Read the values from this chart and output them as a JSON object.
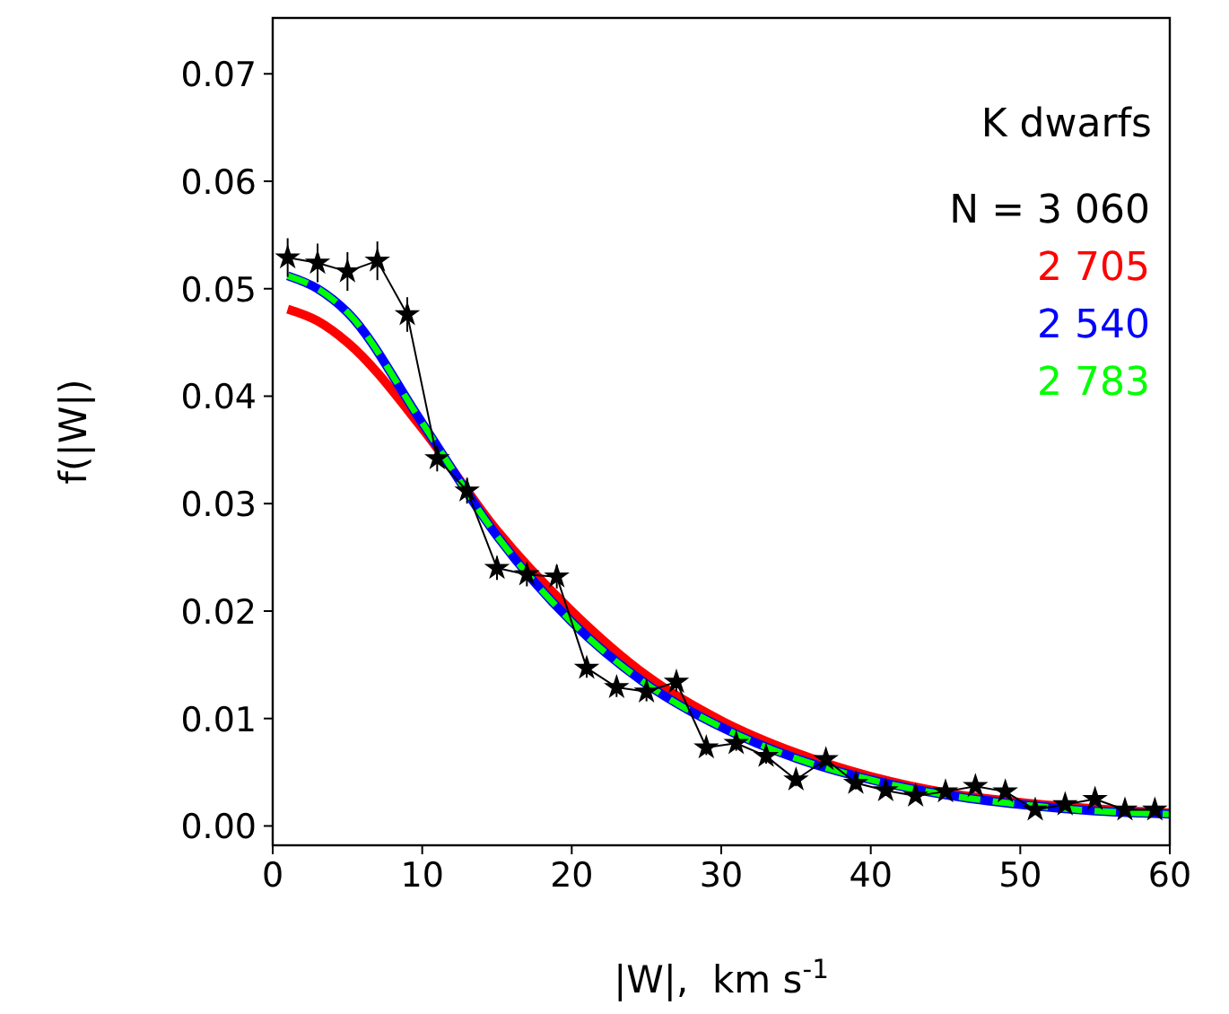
{
  "chart_data": {
    "type": "line",
    "xlabel": "|W|,  km s$^{-1}$",
    "ylabel": "f(|W|)",
    "legend_title": "K dwarfs",
    "legend": "top right",
    "xlim": [
      0,
      60
    ],
    "ylim": [
      -0.0018,
      0.0752
    ],
    "xticks": [
      0,
      10,
      20,
      30,
      40,
      50,
      60
    ],
    "yticks": [
      {
        "value": 0,
        "label": "0.00"
      },
      {
        "value": 0.01,
        "label": "0.01"
      },
      {
        "value": 0.02,
        "label": "0.02"
      },
      {
        "value": 0.03,
        "label": "0.03"
      },
      {
        "value": 0.04,
        "label": "0.04"
      },
      {
        "value": 0.05,
        "label": "0.05"
      },
      {
        "value": 0.06,
        "label": "0.06"
      },
      {
        "value": 0.07,
        "label": "0.07"
      }
    ],
    "grid": false,
    "series": [
      {
        "name": "N = 3 060",
        "color": "#000000",
        "marker": "star",
        "line_style": "solid",
        "x": [
          1,
          3,
          5,
          7,
          9,
          11,
          13,
          15,
          17,
          19,
          21,
          23,
          25,
          27,
          29,
          31,
          33,
          35,
          37,
          39,
          41,
          43,
          45,
          47,
          49,
          51,
          53,
          55,
          57,
          59
        ],
        "values": [
          0.0529,
          0.0524,
          0.0516,
          0.0526,
          0.0476,
          0.0342,
          0.0312,
          0.024,
          0.0234,
          0.0232,
          0.0147,
          0.0129,
          0.0125,
          0.0134,
          0.0073,
          0.0077,
          0.0065,
          0.0043,
          0.0062,
          0.004,
          0.0033,
          0.0028,
          0.0032,
          0.0037,
          0.0032,
          0.0015,
          0.002,
          0.0025,
          0.0015,
          0.0015
        ],
        "errors": [
          0.0018,
          0.0018,
          0.0018,
          0.0018,
          0.0016,
          0.0012,
          0.0012,
          0.0011,
          0.0011,
          0.0011,
          0.0009,
          0.0009,
          0.0009,
          0.0009,
          0.0007,
          0.0007,
          0.0007,
          0.0006,
          0.0006,
          0.0006,
          0.0005,
          0.0005,
          0.0005,
          0.0005,
          0.0005,
          0.0004,
          0.0004,
          0.0004,
          0.0004,
          0.0004
        ]
      },
      {
        "name": "2 705",
        "color": "#ff0000",
        "marker": "none",
        "line_style": "solid",
        "x": [
          1,
          3,
          5,
          10,
          15,
          20,
          25,
          30,
          35,
          40,
          45,
          50,
          55,
          60
        ],
        "values": [
          0.0481,
          0.047,
          0.045,
          0.037,
          0.0275,
          0.02,
          0.014,
          0.0098,
          0.0068,
          0.0046,
          0.0031,
          0.0022,
          0.0016,
          0.0012
        ]
      },
      {
        "name": "2 540",
        "color": "#0000ff",
        "marker": "none",
        "line_style": "solid",
        "x": [
          1,
          3,
          5,
          10,
          15,
          20,
          25,
          30,
          35,
          40,
          45,
          50,
          55,
          60
        ],
        "values": [
          0.0512,
          0.05,
          0.0478,
          0.0375,
          0.027,
          0.019,
          0.0132,
          0.0092,
          0.0063,
          0.0043,
          0.0029,
          0.002,
          0.0014,
          0.0011
        ]
      },
      {
        "name": "2 783",
        "color": "#00ff00",
        "marker": "none",
        "line_style": "dashed",
        "x": [
          1,
          3,
          5,
          10,
          15,
          20,
          25,
          30,
          35,
          40,
          45,
          50,
          55,
          60
        ],
        "values": [
          0.0512,
          0.05,
          0.0478,
          0.0375,
          0.027,
          0.019,
          0.0132,
          0.0092,
          0.0063,
          0.0043,
          0.0029,
          0.002,
          0.0014,
          0.0011
        ]
      }
    ]
  }
}
